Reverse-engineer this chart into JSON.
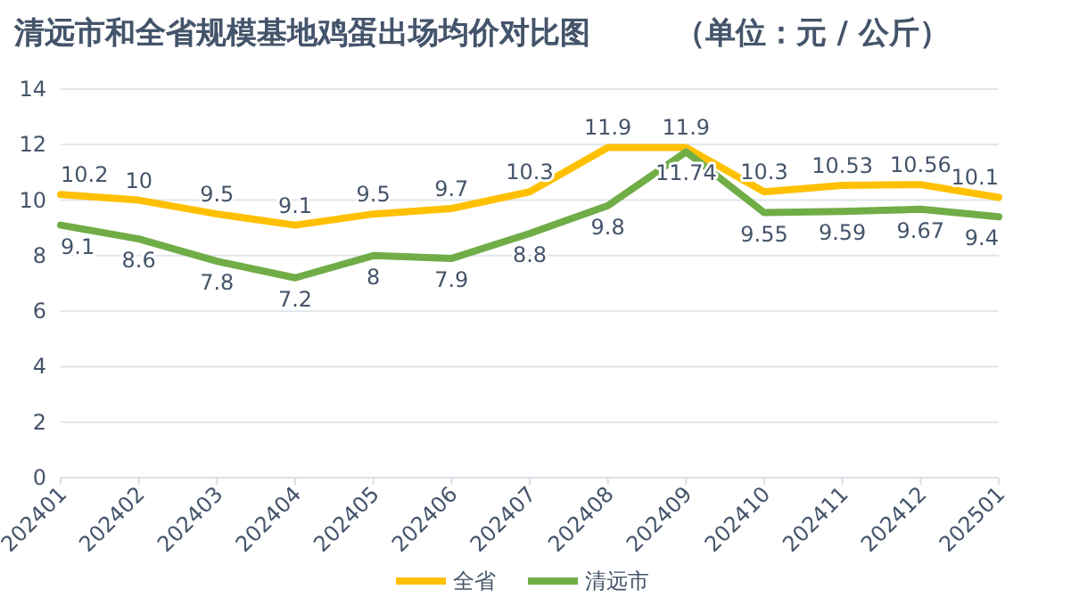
{
  "chart_data": {
    "type": "line",
    "title": "清远市和全省规模基地鸡蛋出场均价对比图        （单位：元 / 公斤）",
    "categories": [
      "202401",
      "202402",
      "202403",
      "202404",
      "202405",
      "202406",
      "202407",
      "202408",
      "202409",
      "202410",
      "202411",
      "202412",
      "202501"
    ],
    "series": [
      {
        "name": "全省",
        "color": "#ffc000",
        "values": [
          10.2,
          10,
          9.5,
          9.1,
          9.5,
          9.7,
          10.3,
          11.9,
          11.9,
          10.3,
          10.53,
          10.56,
          10.1
        ]
      },
      {
        "name": "清远市",
        "color": "#70ad47",
        "values": [
          9.1,
          8.6,
          7.8,
          7.2,
          8,
          7.9,
          8.8,
          9.8,
          11.74,
          9.55,
          9.59,
          9.67,
          9.4
        ]
      }
    ],
    "ylim": [
      0,
      14
    ],
    "yticks": [
      0,
      2,
      4,
      6,
      8,
      10,
      12,
      14
    ],
    "grid": "y",
    "legend": "bottom",
    "data_labels": true,
    "marker": "none",
    "line_style": "solid"
  }
}
